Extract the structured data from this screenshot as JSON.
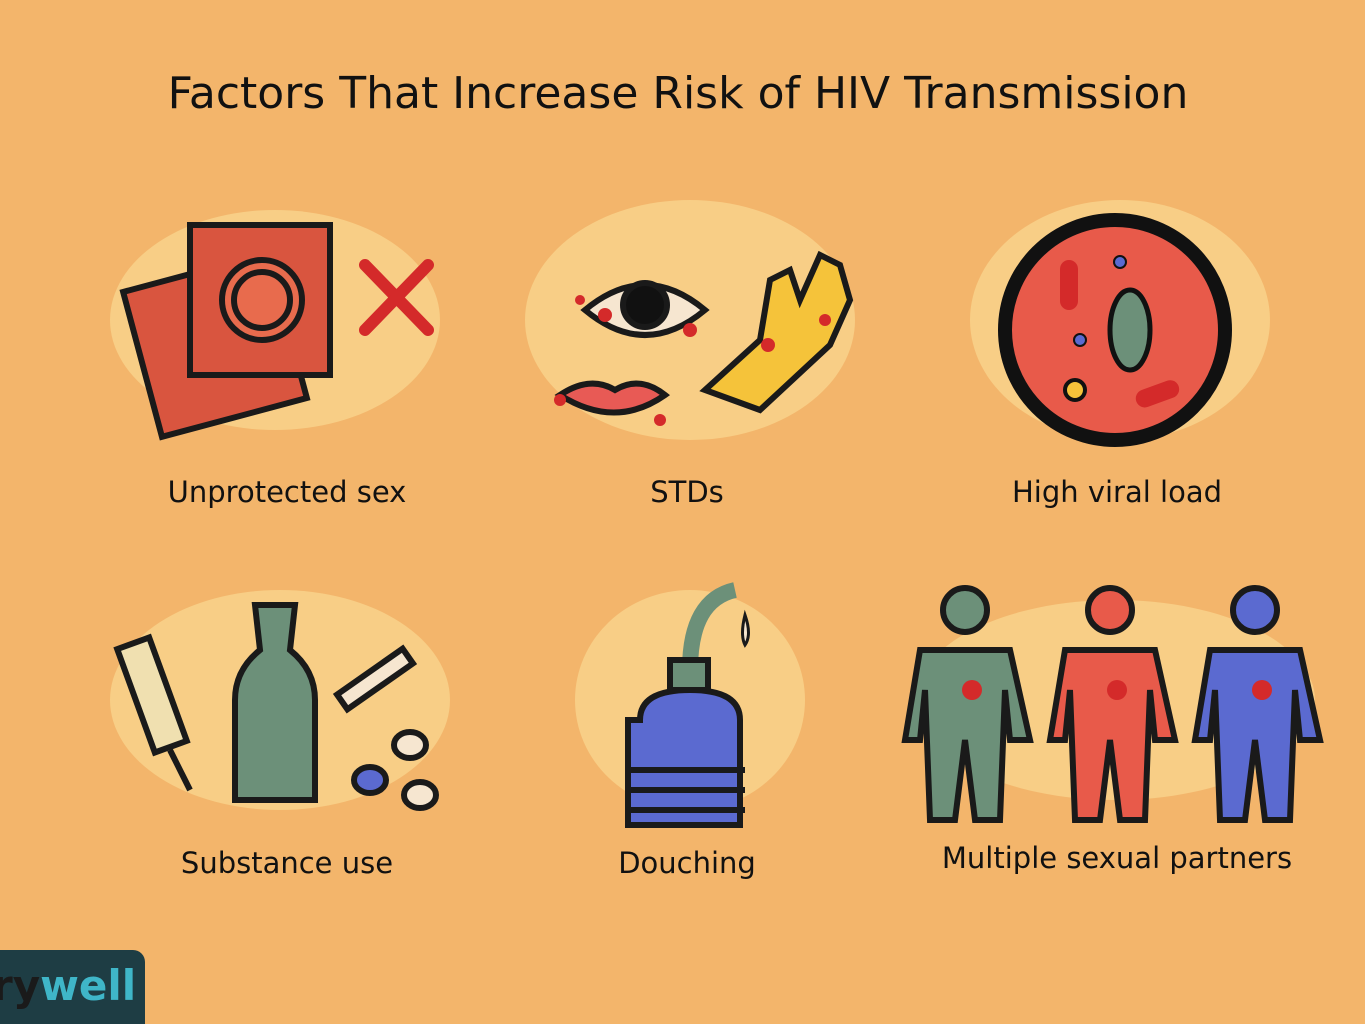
{
  "header": {
    "title": "Factors That Increase Risk of HIV Transmission"
  },
  "items": [
    {
      "label": "Unprotected sex"
    },
    {
      "label": "STDs"
    },
    {
      "label": "High viral load"
    },
    {
      "label": "Substance use"
    },
    {
      "label": "Douching"
    },
    {
      "label": "Multiple sexual partners"
    }
  ],
  "logo": {
    "prefix": "ry",
    "suffix": "well"
  }
}
